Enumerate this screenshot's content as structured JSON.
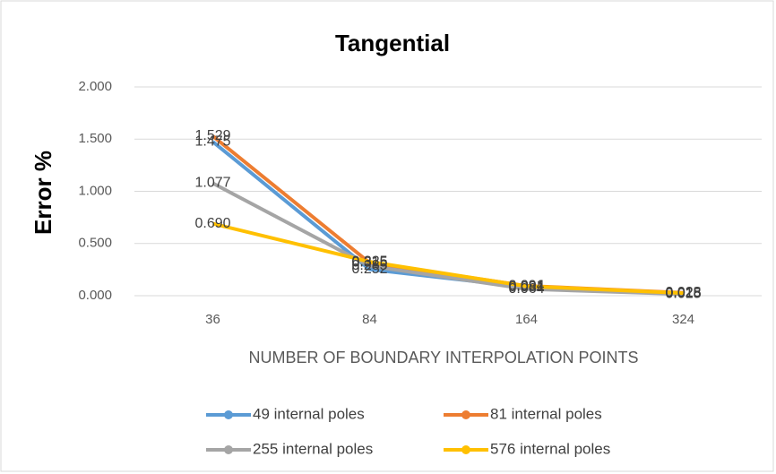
{
  "chart_data": {
    "type": "line",
    "title": "Tangential",
    "y_label": "Error %",
    "x_label": "NUMBER OF BOUNDARY INTERPOLATION POINTS",
    "categories": [
      "36",
      "84",
      "164",
      "324"
    ],
    "ylim": [
      0,
      2
    ],
    "yticks": [
      {
        "value": 0,
        "label": "0.000"
      },
      {
        "value": 0.5,
        "label": "0.500"
      },
      {
        "value": 1,
        "label": "1.000"
      },
      {
        "value": 1.5,
        "label": "1.500"
      },
      {
        "value": 2,
        "label": "2.000"
      }
    ],
    "grid": true,
    "legend": "bottom",
    "series": [
      {
        "name": "49 internal poles",
        "color": "#5b9bd5",
        "values": [
          1.475,
          0.252,
          0.081,
          0.018
        ],
        "value_labels": [
          "1.475",
          "0.252",
          "0.081",
          "0.018"
        ]
      },
      {
        "name": "81 internal poles",
        "color": "#ed7d31",
        "values": [
          1.529,
          0.315,
          0.094,
          0.028
        ],
        "value_labels": [
          "1.529",
          "0.315",
          "0.094",
          "0.028"
        ]
      },
      {
        "name": "255 internal poles",
        "color": "#a5a5a5",
        "values": [
          1.077,
          0.285,
          0.064,
          0.015
        ],
        "value_labels": [
          "1.077",
          "0.285",
          "0.064",
          "0.015"
        ]
      },
      {
        "name": "576  internal poles",
        "color": "#ffc000",
        "values": [
          0.69,
          0.325,
          0.091,
          0.025
        ],
        "value_labels": [
          "0.690",
          "0.325",
          "0.091",
          "0.025"
        ]
      }
    ]
  }
}
